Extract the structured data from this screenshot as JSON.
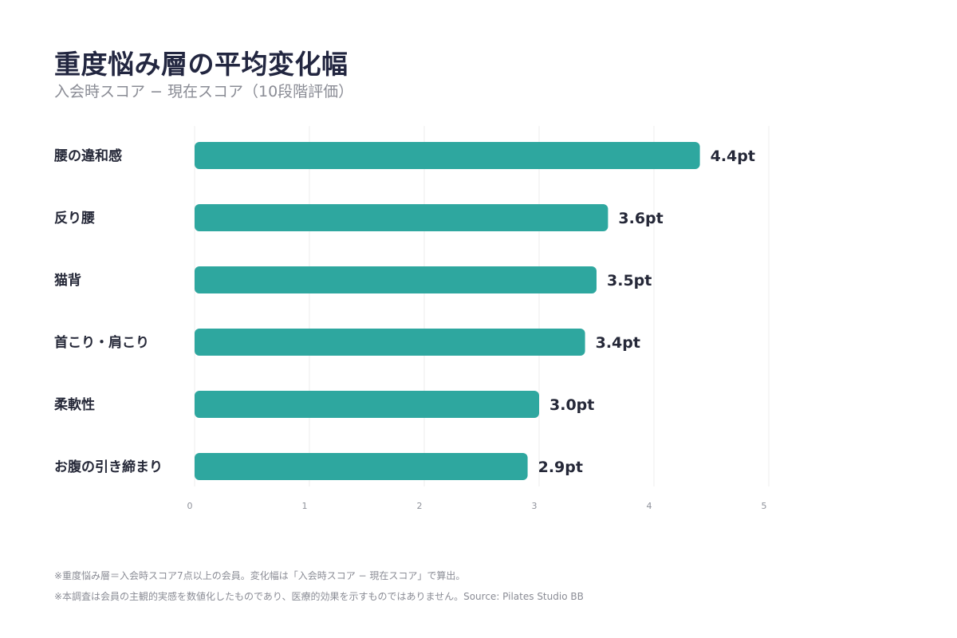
{
  "chart_data": {
    "type": "bar",
    "orientation": "horizontal",
    "title": "重度悩み層の平均変化幅",
    "subtitle": "入会時スコア − 現在スコア（10段階評価）",
    "categories": [
      "腰の違和感",
      "反り腰",
      "猫背",
      "首こり・肩こり",
      "柔軟性",
      "お腹の引き締まり"
    ],
    "values": [
      4.4,
      3.6,
      3.5,
      3.4,
      3.0,
      2.9
    ],
    "value_labels": [
      "4.4pt",
      "3.6pt",
      "3.5pt",
      "3.4pt",
      "3.0pt",
      "2.9pt"
    ],
    "xlim": [
      0,
      5
    ],
    "xticks": [
      0,
      1,
      2,
      3,
      4,
      5
    ],
    "grid": true,
    "bar_color": "#2ea79f"
  },
  "notes": [
    "※重度悩み層＝入会時スコア7点以上の会員。変化幅は「入会時スコア − 現在スコア」で算出。",
    "※本調査は会員の主観的実感を数値化したものであり、医療的効果を示すものではありません。Source: Pilates Studio BB"
  ]
}
